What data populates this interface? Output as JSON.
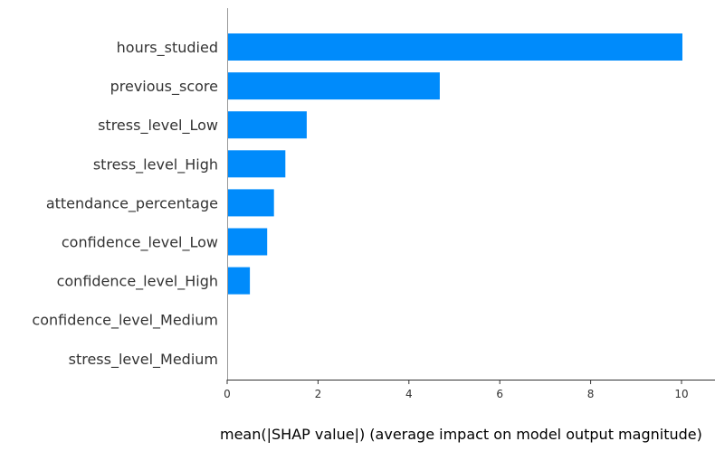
{
  "chart_data": {
    "type": "bar",
    "orientation": "horizontal",
    "categories": [
      "hours_studied",
      "previous_score",
      "stress_level_Low",
      "stress_level_High",
      "attendance_percentage",
      "confidence_level_Low",
      "confidence_level_High",
      "confidence_level_Medium",
      "stress_level_Medium"
    ],
    "values": [
      10.02,
      4.68,
      1.75,
      1.28,
      1.03,
      0.88,
      0.5,
      0,
      0
    ],
    "title": "",
    "xlabel": "mean(|SHAP value|) (average impact on model output magnitude)",
    "ylabel": "",
    "xlim": [
      0,
      10.55
    ],
    "xticks": [
      0,
      2,
      4,
      6,
      8,
      10
    ],
    "grid": false,
    "bar_color": "#008bfb",
    "axis_color": "#333333"
  }
}
